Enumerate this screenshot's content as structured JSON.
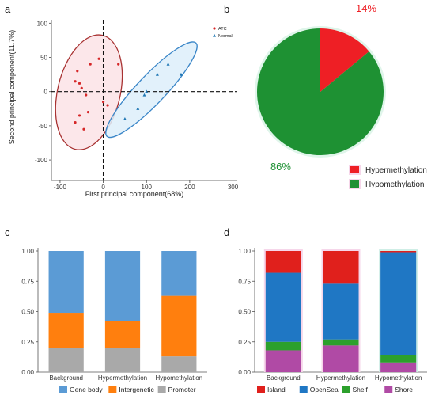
{
  "panel_labels": [
    "a",
    "b",
    "c",
    "d"
  ],
  "chart_data": [
    {
      "panel": "a",
      "type": "scatter",
      "xlabel": "First principal component(68%)",
      "ylabel": "Second principal component(11.7%)",
      "xlim": [
        -120,
        310
      ],
      "ylim": [
        -130,
        105
      ],
      "xticks": [
        "-100",
        "0",
        "100",
        "200",
        "300"
      ],
      "yticks": [
        "100",
        "50",
        "0",
        "-50",
        "-100"
      ],
      "grid": false,
      "legend_position": "top-right",
      "series": [
        {
          "name": "ATC",
          "color": "#d62728",
          "marker": "circle",
          "points": [
            [
              -60,
              30
            ],
            [
              -65,
              15
            ],
            [
              -55,
              12
            ],
            [
              -50,
              5
            ],
            [
              -30,
              40
            ],
            [
              -10,
              48
            ],
            [
              -40,
              -5
            ],
            [
              0,
              -15
            ],
            [
              -35,
              -30
            ],
            [
              -55,
              -35
            ],
            [
              -65,
              -45
            ],
            [
              -45,
              -55
            ],
            [
              10,
              -20
            ],
            [
              35,
              40
            ]
          ]
        },
        {
          "name": "Normal",
          "color": "#1f77b4",
          "marker": "triangle",
          "points": [
            [
              50,
              -40
            ],
            [
              100,
              0
            ],
            [
              125,
              25
            ],
            [
              180,
              25
            ],
            [
              150,
              40
            ],
            [
              80,
              -25
            ],
            [
              95,
              -5
            ]
          ]
        }
      ],
      "ellipses": [
        {
          "group": "ATC",
          "color": "#a83232",
          "fill": "#fbe3e6"
        },
        {
          "group": "Normal",
          "color": "#3a86c8",
          "fill": "#ddeefa"
        }
      ]
    },
    {
      "panel": "b",
      "type": "pie",
      "slices": [
        {
          "label": "Hypermethylation",
          "value": 14,
          "display": "14%",
          "color": "#ee1f25"
        },
        {
          "label": "Hypomethylation",
          "value": 86,
          "display": "86%",
          "color": "#1e9133"
        }
      ]
    },
    {
      "panel": "c",
      "type": "bar",
      "stacked": true,
      "categories": [
        "Background",
        "Hypermethylation",
        "Hypomethylation"
      ],
      "ylim": [
        0,
        1
      ],
      "yticks": [
        "0.00",
        "0.25",
        "0.50",
        "0.75",
        "1.00"
      ],
      "series": [
        {
          "name": "Promoter",
          "color": "#a9a9a9",
          "values": [
            0.2,
            0.2,
            0.13
          ]
        },
        {
          "name": "Intergenetic",
          "color": "#ff7f0e",
          "values": [
            0.29,
            0.22,
            0.5
          ]
        },
        {
          "name": "Gene body",
          "color": "#5b9bd5",
          "values": [
            0.51,
            0.58,
            0.37
          ]
        }
      ]
    },
    {
      "panel": "d",
      "type": "bar",
      "stacked": true,
      "categories": [
        "Background",
        "Hypermethylation",
        "Hypomethylation"
      ],
      "ylim": [
        0,
        1
      ],
      "yticks": [
        "0.00",
        "0.25",
        "0.50",
        "0.75",
        "1.00"
      ],
      "series": [
        {
          "name": "Shore",
          "color": "#b04aa5",
          "values": [
            0.18,
            0.22,
            0.08
          ]
        },
        {
          "name": "Shelf",
          "color": "#2ca02c",
          "values": [
            0.07,
            0.05,
            0.06
          ]
        },
        {
          "name": "OpenSea",
          "color": "#1f77c4",
          "values": [
            0.57,
            0.46,
            0.85
          ]
        },
        {
          "name": "Island",
          "color": "#e0201c",
          "values": [
            0.18,
            0.27,
            0.01
          ]
        }
      ]
    }
  ]
}
